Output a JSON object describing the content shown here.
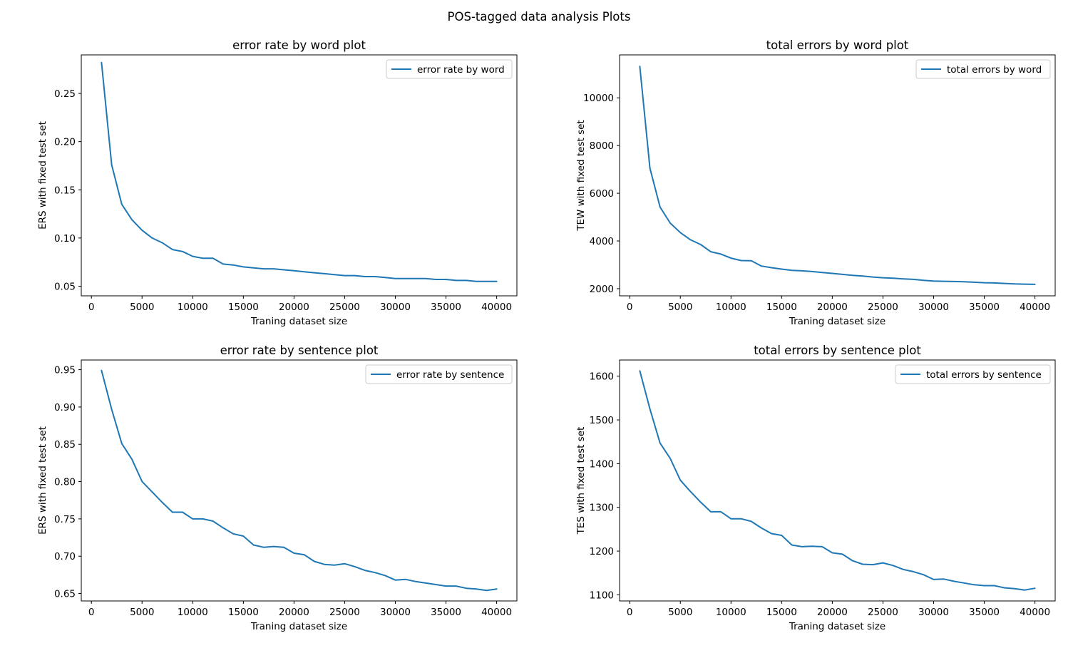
{
  "figure": {
    "suptitle": "POS-tagged data analysis Plots"
  },
  "colors": {
    "line": "#1f77b4",
    "axes": "#000000",
    "legend_border": "#cccccc"
  },
  "chart_data": [
    {
      "type": "line",
      "title": "error rate by word plot",
      "xlabel": "Traning dataset size",
      "ylabel": "ERS with fixed test set",
      "legend": "top-right",
      "grid": false,
      "xlim": [
        -1000,
        42000
      ],
      "ylim": [
        0.04,
        0.29
      ],
      "xticks": [
        0,
        5000,
        10000,
        15000,
        20000,
        25000,
        30000,
        35000,
        40000
      ],
      "yticks": [
        0.05,
        0.1,
        0.15,
        0.2,
        0.25
      ],
      "ytick_labels": [
        "0.05",
        "0.10",
        "0.15",
        "0.20",
        "0.25"
      ],
      "x": [
        1000,
        2000,
        3000,
        4000,
        5000,
        6000,
        7000,
        8000,
        9000,
        10000,
        11000,
        12000,
        13000,
        14000,
        15000,
        16000,
        17000,
        18000,
        19000,
        20000,
        21000,
        22000,
        23000,
        24000,
        25000,
        26000,
        27000,
        28000,
        29000,
        30000,
        31000,
        32000,
        33000,
        34000,
        35000,
        36000,
        37000,
        38000,
        39000,
        40000
      ],
      "series": [
        {
          "name": "error rate by word",
          "values": [
            0.282,
            0.176,
            0.135,
            0.119,
            0.108,
            0.1,
            0.095,
            0.088,
            0.086,
            0.081,
            0.079,
            0.079,
            0.073,
            0.072,
            0.07,
            0.069,
            0.068,
            0.068,
            0.067,
            0.066,
            0.065,
            0.064,
            0.063,
            0.062,
            0.061,
            0.061,
            0.06,
            0.06,
            0.059,
            0.058,
            0.058,
            0.058,
            0.058,
            0.057,
            0.057,
            0.056,
            0.056,
            0.055,
            0.055,
            0.055
          ]
        }
      ]
    },
    {
      "type": "line",
      "title": "total errors by word plot",
      "xlabel": "Traning dataset size",
      "ylabel": "TEW with fixed test set",
      "legend": "top-right",
      "grid": false,
      "xlim": [
        -1000,
        42000
      ],
      "ylim": [
        1700,
        11800
      ],
      "xticks": [
        0,
        5000,
        10000,
        15000,
        20000,
        25000,
        30000,
        35000,
        40000
      ],
      "yticks": [
        2000,
        4000,
        6000,
        8000,
        10000
      ],
      "ytick_labels": [
        "2000",
        "4000",
        "6000",
        "8000",
        "10000"
      ],
      "x": [
        1000,
        2000,
        3000,
        4000,
        5000,
        6000,
        7000,
        8000,
        9000,
        10000,
        11000,
        12000,
        13000,
        14000,
        15000,
        16000,
        17000,
        18000,
        19000,
        20000,
        21000,
        22000,
        23000,
        24000,
        25000,
        26000,
        27000,
        28000,
        29000,
        30000,
        31000,
        32000,
        33000,
        34000,
        35000,
        36000,
        37000,
        38000,
        39000,
        40000
      ],
      "series": [
        {
          "name": "total errors by word",
          "values": [
            11320,
            7050,
            5420,
            4750,
            4350,
            4050,
            3850,
            3550,
            3450,
            3280,
            3180,
            3170,
            2950,
            2880,
            2820,
            2770,
            2750,
            2720,
            2680,
            2640,
            2600,
            2560,
            2530,
            2490,
            2460,
            2440,
            2410,
            2390,
            2350,
            2320,
            2310,
            2300,
            2290,
            2270,
            2250,
            2240,
            2220,
            2200,
            2190,
            2180
          ]
        }
      ]
    },
    {
      "type": "line",
      "title": "error rate by sentence plot",
      "xlabel": "Traning dataset size",
      "ylabel": "ERS with fixed test set",
      "legend": "top-right",
      "grid": false,
      "xlim": [
        -1000,
        42000
      ],
      "ylim": [
        0.64,
        0.963
      ],
      "xticks": [
        0,
        5000,
        10000,
        15000,
        20000,
        25000,
        30000,
        35000,
        40000
      ],
      "yticks": [
        0.65,
        0.7,
        0.75,
        0.8,
        0.85,
        0.9,
        0.95
      ],
      "ytick_labels": [
        "0.65",
        "0.70",
        "0.75",
        "0.80",
        "0.85",
        "0.90",
        "0.95"
      ],
      "x": [
        1000,
        2000,
        3000,
        4000,
        5000,
        6000,
        7000,
        8000,
        9000,
        10000,
        11000,
        12000,
        13000,
        14000,
        15000,
        16000,
        17000,
        18000,
        19000,
        20000,
        21000,
        22000,
        23000,
        24000,
        25000,
        26000,
        27000,
        28000,
        29000,
        30000,
        31000,
        32000,
        33000,
        34000,
        35000,
        36000,
        37000,
        38000,
        39000,
        40000
      ],
      "series": [
        {
          "name": "error rate by sentence",
          "values": [
            0.949,
            0.897,
            0.851,
            0.83,
            0.8,
            0.786,
            0.772,
            0.759,
            0.759,
            0.75,
            0.75,
            0.747,
            0.738,
            0.73,
            0.727,
            0.715,
            0.712,
            0.713,
            0.712,
            0.704,
            0.702,
            0.693,
            0.689,
            0.688,
            0.69,
            0.686,
            0.681,
            0.678,
            0.674,
            0.668,
            0.669,
            0.666,
            0.664,
            0.662,
            0.66,
            0.66,
            0.657,
            0.656,
            0.654,
            0.656
          ]
        }
      ]
    },
    {
      "type": "line",
      "title": "total errors by sentence plot",
      "xlabel": "Traning dataset size",
      "ylabel": "TES with fixed test set",
      "legend": "top-right",
      "grid": false,
      "xlim": [
        -1000,
        42000
      ],
      "ylim": [
        1086,
        1637
      ],
      "xticks": [
        0,
        5000,
        10000,
        15000,
        20000,
        25000,
        30000,
        35000,
        40000
      ],
      "yticks": [
        1100,
        1200,
        1300,
        1400,
        1500,
        1600
      ],
      "ytick_labels": [
        "1100",
        "1200",
        "1300",
        "1400",
        "1500",
        "1600"
      ],
      "x": [
        1000,
        2000,
        3000,
        4000,
        5000,
        6000,
        7000,
        8000,
        9000,
        10000,
        11000,
        12000,
        13000,
        14000,
        15000,
        16000,
        17000,
        18000,
        19000,
        20000,
        21000,
        22000,
        23000,
        24000,
        25000,
        26000,
        27000,
        28000,
        29000,
        30000,
        31000,
        32000,
        33000,
        34000,
        35000,
        36000,
        37000,
        38000,
        39000,
        40000
      ],
      "series": [
        {
          "name": "total errors by sentence",
          "values": [
            1612,
            1525,
            1447,
            1412,
            1362,
            1336,
            1312,
            1290,
            1290,
            1274,
            1274,
            1268,
            1253,
            1240,
            1236,
            1214,
            1210,
            1211,
            1210,
            1196,
            1193,
            1178,
            1170,
            1169,
            1173,
            1167,
            1158,
            1153,
            1146,
            1135,
            1136,
            1131,
            1127,
            1123,
            1121,
            1121,
            1116,
            1114,
            1111,
            1115
          ]
        }
      ]
    }
  ]
}
